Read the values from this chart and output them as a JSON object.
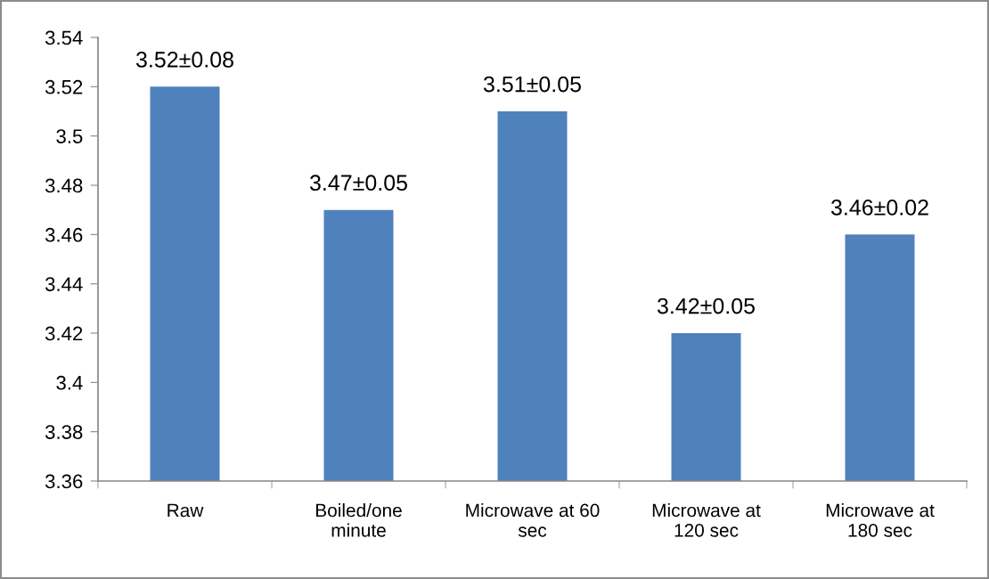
{
  "chart_data": {
    "type": "bar",
    "categories": [
      "Raw",
      "Boiled/one\nminute",
      "Microwave at 60\nsec",
      "Microwave at\n120 sec",
      "Microwave at\n180 sec"
    ],
    "values": [
      3.52,
      3.47,
      3.51,
      3.42,
      3.46
    ],
    "value_labels": [
      "3.52±0.08",
      "3.47±0.05",
      "3.51±0.05",
      "3.42±0.05",
      "3.46±0.02"
    ],
    "color": "#4f81bd",
    "ylim": [
      3.36,
      3.54
    ],
    "yticks": [
      3.36,
      3.38,
      3.4,
      3.42,
      3.44,
      3.46,
      3.48,
      3.5,
      3.52,
      3.54
    ],
    "grid": false,
    "legend": false
  }
}
